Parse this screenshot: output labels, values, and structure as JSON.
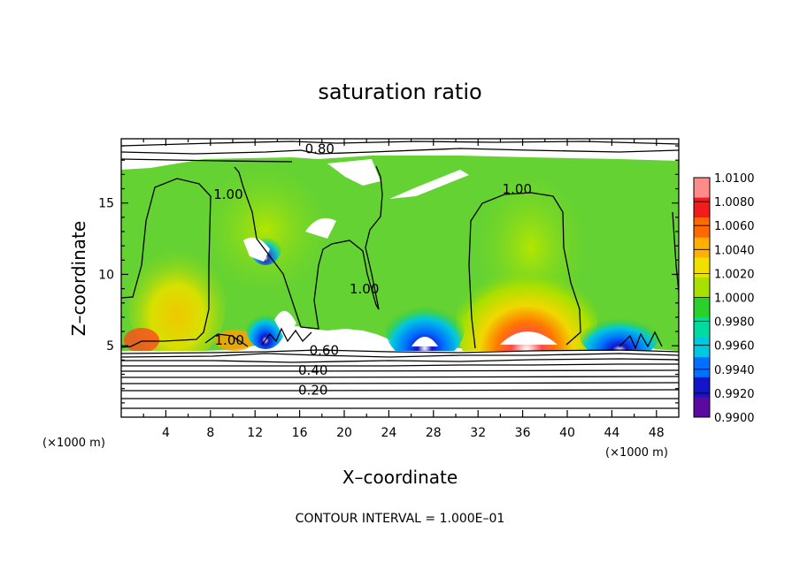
{
  "chart_data": {
    "type": "heatmap",
    "title": "saturation ratio",
    "xlabel": "X–coordinate",
    "ylabel": "Z–coordinate",
    "x_unit": "(×1000 m)",
    "z_unit": "(×1000 m)",
    "xlim": [
      0,
      50
    ],
    "ylim": [
      0,
      19.5
    ],
    "x_ticks": [
      4,
      8,
      12,
      16,
      20,
      24,
      28,
      32,
      36,
      40,
      44,
      48
    ],
    "y_ticks": [
      5,
      10,
      15
    ],
    "x_tick_labels": [
      "4",
      "8",
      "12",
      "16",
      "20",
      "24",
      "28",
      "32",
      "36",
      "40",
      "44",
      "48"
    ],
    "y_tick_labels": [
      "5",
      "10",
      "15"
    ],
    "colorbar": {
      "labels": [
        "1.0100",
        "1.0080",
        "1.0060",
        "1.0040",
        "1.0020",
        "1.0000",
        "0.9980",
        "0.9960",
        "0.9940",
        "0.9920",
        "0.9900"
      ],
      "colors": [
        "#ff8a8a",
        "#f21c1c",
        "#ff6a00",
        "#ffb000",
        "#f0e000",
        "#a8e000",
        "#28d228",
        "#00dca0",
        "#00c8e0",
        "#0070ff",
        "#1414c8",
        "#5a0aa0"
      ],
      "range": [
        0.99,
        1.01
      ]
    },
    "contour_labels": [
      {
        "text": "0.80",
        "x": 17.8,
        "z": 18.6
      },
      {
        "text": "1.00",
        "x": 9.6,
        "z": 15.4
      },
      {
        "text": "1.00",
        "x": 35.5,
        "z": 15.8
      },
      {
        "text": "1.00",
        "x": 21.8,
        "z": 8.8
      },
      {
        "text": "1.00",
        "x": 9.7,
        "z": 5.2
      },
      {
        "text": "0.60",
        "x": 18.2,
        "z": 4.5
      },
      {
        "text": "0.40",
        "x": 17.2,
        "z": 3.1
      },
      {
        "text": "0.20",
        "x": 17.2,
        "z": 1.7
      }
    ],
    "contour_interval_text": "CONTOUR INTERVAL = 1.000E–01",
    "grid": false
  }
}
